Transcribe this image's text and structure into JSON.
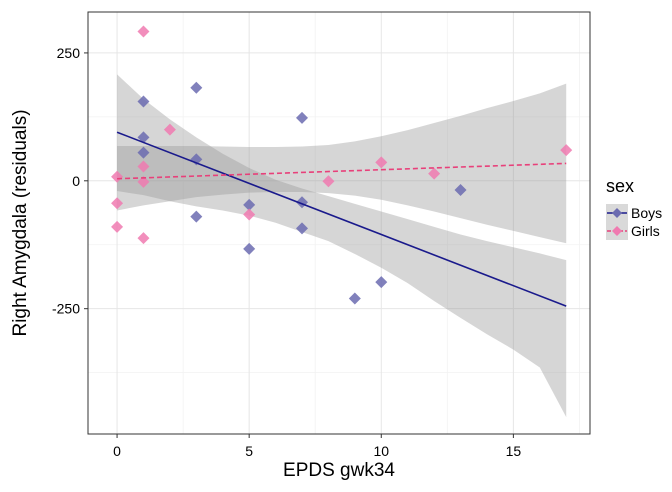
{
  "chart_data": {
    "type": "scatter",
    "xlabel": "EPDS gwk34",
    "ylabel": "Right Amygdala (residuals)",
    "xlim": [
      -1.1,
      17.9
    ],
    "ylim": [
      -495,
      330
    ],
    "x_ticks": [
      0,
      5,
      10,
      15
    ],
    "y_ticks": [
      250,
      0,
      -250
    ],
    "x_tick_labels": [
      "0",
      "5",
      "10",
      "15"
    ],
    "y_tick_labels": [
      "250",
      "0",
      "-250"
    ],
    "grid": true,
    "legend": {
      "title": "sex",
      "position": "right",
      "entries": [
        "Boys",
        "Girls"
      ]
    },
    "series": [
      {
        "name": "Boys",
        "color": "#6b6bb0",
        "line_color": "#1a1a8c",
        "line_style": "solid",
        "points": [
          {
            "x": 1,
            "y": 155
          },
          {
            "x": 1,
            "y": 85
          },
          {
            "x": 1,
            "y": 55
          },
          {
            "x": 3,
            "y": 182
          },
          {
            "x": 3,
            "y": 42
          },
          {
            "x": 3,
            "y": -70
          },
          {
            "x": 5,
            "y": -47
          },
          {
            "x": 5,
            "y": -133
          },
          {
            "x": 7,
            "y": 123
          },
          {
            "x": 7,
            "y": -42
          },
          {
            "x": 7,
            "y": -93
          },
          {
            "x": 9,
            "y": -230
          },
          {
            "x": 10,
            "y": -198
          },
          {
            "x": 13,
            "y": -18
          }
        ],
        "fit": {
          "x": [
            0,
            17
          ],
          "y": [
            95,
            -245
          ]
        },
        "ci_upper": [
          {
            "x": 0,
            "y": 208
          },
          {
            "x": 1,
            "y": 160
          },
          {
            "x": 2,
            "y": 120
          },
          {
            "x": 3,
            "y": 85
          },
          {
            "x": 4,
            "y": 53
          },
          {
            "x": 5,
            "y": 25
          },
          {
            "x": 6,
            "y": 2
          },
          {
            "x": 7,
            "y": -15
          },
          {
            "x": 8,
            "y": -30
          },
          {
            "x": 9,
            "y": -45
          },
          {
            "x": 10,
            "y": -60
          },
          {
            "x": 11,
            "y": -75
          },
          {
            "x": 12,
            "y": -90
          },
          {
            "x": 13,
            "y": -105
          },
          {
            "x": 14,
            "y": -118
          },
          {
            "x": 15,
            "y": -130
          },
          {
            "x": 16,
            "y": -142
          },
          {
            "x": 17,
            "y": -155
          }
        ],
        "ci_lower": [
          {
            "x": 0,
            "y": -20
          },
          {
            "x": 1,
            "y": -28
          },
          {
            "x": 2,
            "y": -40
          },
          {
            "x": 3,
            "y": -50
          },
          {
            "x": 4,
            "y": -58
          },
          {
            "x": 5,
            "y": -68
          },
          {
            "x": 6,
            "y": -82
          },
          {
            "x": 7,
            "y": -100
          },
          {
            "x": 8,
            "y": -118
          },
          {
            "x": 9,
            "y": -143
          },
          {
            "x": 10,
            "y": -170
          },
          {
            "x": 11,
            "y": -200
          },
          {
            "x": 12,
            "y": -235
          },
          {
            "x": 13,
            "y": -268
          },
          {
            "x": 14,
            "y": -300
          },
          {
            "x": 15,
            "y": -330
          },
          {
            "x": 16,
            "y": -365
          },
          {
            "x": 17,
            "y": -462
          }
        ]
      },
      {
        "name": "Girls",
        "color": "#f07ab0",
        "line_color": "#e8407a",
        "line_style": "dashed",
        "points": [
          {
            "x": 1,
            "y": 292
          },
          {
            "x": 2,
            "y": 100
          },
          {
            "x": 1,
            "y": 28
          },
          {
            "x": 1,
            "y": -2
          },
          {
            "x": 0,
            "y": 8
          },
          {
            "x": 0,
            "y": -44
          },
          {
            "x": 0,
            "y": -90
          },
          {
            "x": 1,
            "y": -112
          },
          {
            "x": 5,
            "y": -66
          },
          {
            "x": 8,
            "y": -1
          },
          {
            "x": 10,
            "y": 36
          },
          {
            "x": 12,
            "y": 14
          },
          {
            "x": 17,
            "y": 60
          }
        ],
        "fit": {
          "x": [
            0,
            17
          ],
          "y": [
            4,
            34
          ]
        },
        "ci_upper": [
          {
            "x": 0,
            "y": 68
          },
          {
            "x": 1,
            "y": 68
          },
          {
            "x": 2,
            "y": 68
          },
          {
            "x": 3,
            "y": 68
          },
          {
            "x": 4,
            "y": 67
          },
          {
            "x": 5,
            "y": 66
          },
          {
            "x": 6,
            "y": 66
          },
          {
            "x": 7,
            "y": 67
          },
          {
            "x": 8,
            "y": 70
          },
          {
            "x": 9,
            "y": 77
          },
          {
            "x": 10,
            "y": 87
          },
          {
            "x": 11,
            "y": 99
          },
          {
            "x": 12,
            "y": 113
          },
          {
            "x": 13,
            "y": 127
          },
          {
            "x": 14,
            "y": 142
          },
          {
            "x": 15,
            "y": 156
          },
          {
            "x": 16,
            "y": 171
          },
          {
            "x": 17,
            "y": 190
          }
        ],
        "ci_lower": [
          {
            "x": 0,
            "y": -58
          },
          {
            "x": 1,
            "y": -48
          },
          {
            "x": 2,
            "y": -40
          },
          {
            "x": 3,
            "y": -32
          },
          {
            "x": 4,
            "y": -27
          },
          {
            "x": 5,
            "y": -23
          },
          {
            "x": 6,
            "y": -22
          },
          {
            "x": 7,
            "y": -22
          },
          {
            "x": 8,
            "y": -24
          },
          {
            "x": 9,
            "y": -29
          },
          {
            "x": 10,
            "y": -37
          },
          {
            "x": 11,
            "y": -48
          },
          {
            "x": 12,
            "y": -60
          },
          {
            "x": 13,
            "y": -73
          },
          {
            "x": 14,
            "y": -86
          },
          {
            "x": 15,
            "y": -98
          },
          {
            "x": 16,
            "y": -110
          },
          {
            "x": 17,
            "y": -122
          }
        ]
      }
    ]
  }
}
